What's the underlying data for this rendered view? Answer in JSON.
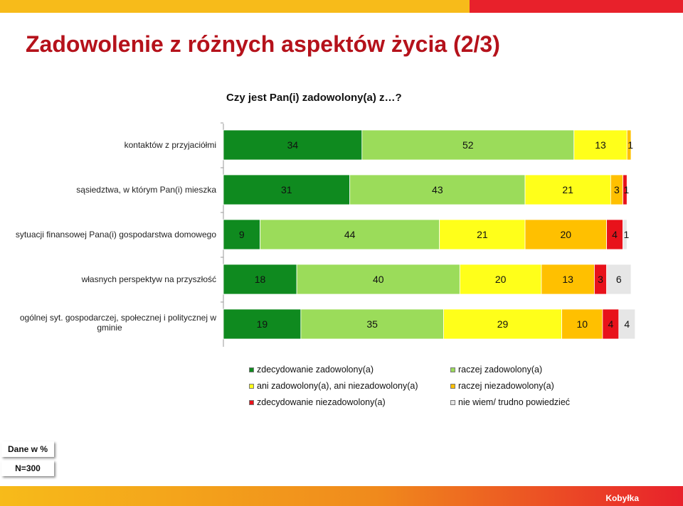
{
  "title": "Zadowolenie z różnych aspektów życia (2/3)",
  "question": "Czy jest Pan(i) zadowolony(a) z…?",
  "notes": {
    "data_unit": "Dane w %",
    "sample": "N=300"
  },
  "brand": "Kobyłka",
  "colors": {
    "top_yellow": "#f7bb1a",
    "top_red": "#e8212b",
    "title": "#b5121b",
    "series": [
      "#0f8a1f",
      "#9bdc5a",
      "#ffff1a",
      "#ffc000",
      "#e8121b",
      "#e6e6e6"
    ]
  },
  "chart_data": {
    "type": "bar",
    "orientation": "horizontal",
    "stacked": true,
    "categories": [
      "kontaktów z przyjaciółmi",
      "sąsiedztwa, w którym Pan(i) mieszka",
      "sytuacji finansowej Pana(i) gospodarstwa domowego",
      "własnych perspektyw na przyszłość",
      "ogólnej syt. gospodarczej, społecznej i politycznej w gminie"
    ],
    "series": [
      {
        "name": "zdecydowanie zadowolony(a)",
        "values": [
          34,
          31,
          9,
          18,
          19
        ]
      },
      {
        "name": "raczej zadowolony(a)",
        "values": [
          52,
          43,
          44,
          40,
          35
        ]
      },
      {
        "name": "ani zadowolony(a), ani niezadowolony(a)",
        "values": [
          13,
          21,
          21,
          20,
          29
        ]
      },
      {
        "name": "raczej niezadowolony(a)",
        "values": [
          1,
          3,
          20,
          13,
          10
        ]
      },
      {
        "name": "zdecydowanie niezadowolony(a)",
        "values": [
          0,
          1,
          4,
          3,
          4
        ]
      },
      {
        "name": "nie wiem/ trudno powiedzieć",
        "values": [
          0,
          0,
          1,
          6,
          4
        ]
      }
    ],
    "data_labels": [
      [
        "34",
        "52",
        "13",
        "1",
        "",
        ""
      ],
      [
        "31",
        "43",
        "21",
        "3",
        "1",
        ""
      ],
      [
        "9",
        "44",
        "21",
        "20",
        "4",
        "1"
      ],
      [
        "18",
        "40",
        "20",
        "13",
        "3",
        "6"
      ],
      [
        "19",
        "35",
        "29",
        "10",
        "4",
        "4"
      ]
    ],
    "xlim": [
      0,
      100
    ],
    "legend_position": "bottom",
    "grid": false
  }
}
